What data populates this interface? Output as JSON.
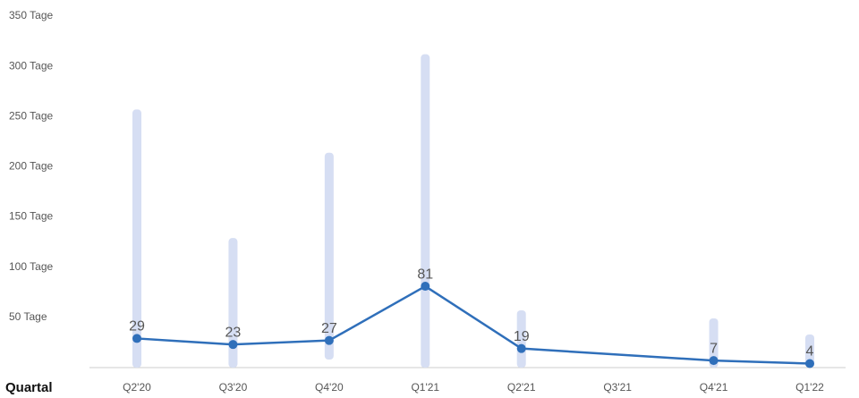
{
  "chart_data": {
    "type": "line",
    "x_label": "Quartal",
    "categories": [
      "Q2'20",
      "Q3'20",
      "Q4'20",
      "Q1'21",
      "Q2'21",
      "Q3'21",
      "Q4'21",
      "Q1'22"
    ],
    "values": [
      29,
      23,
      27,
      81,
      19,
      null,
      7,
      4
    ],
    "range_low": [
      0,
      0,
      8,
      0,
      0,
      null,
      0,
      0
    ],
    "range_high": [
      257,
      129,
      214,
      312,
      57,
      null,
      49,
      33
    ],
    "color": "#2f6fba",
    "range_color": "#d6def3",
    "ylim": [
      0,
      350
    ],
    "yticks": [
      {
        "value": 50,
        "label": "50 Tage"
      },
      {
        "value": 100,
        "label": "100 Tage"
      },
      {
        "value": 150,
        "label": "150 Tage"
      },
      {
        "value": 200,
        "label": "200 Tage"
      },
      {
        "value": 250,
        "label": "250 Tage"
      },
      {
        "value": 300,
        "label": "300 Tage"
      },
      {
        "value": 350,
        "label": "350 Tage"
      }
    ],
    "grid": false
  }
}
